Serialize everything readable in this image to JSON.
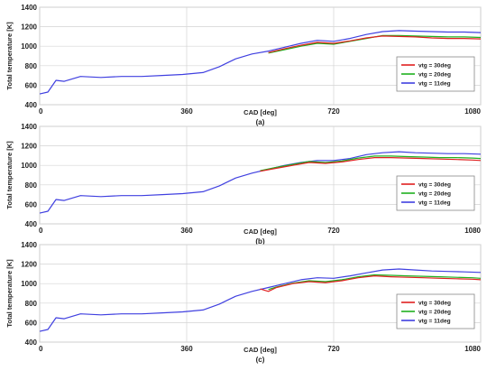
{
  "chart_data": [
    {
      "type": "line",
      "caption": "(a)",
      "xlabel": "CAD [deg]",
      "ylabel": "Total temperature [K]",
      "xlim": [
        0,
        1080
      ],
      "ylim": [
        400,
        1400
      ],
      "xticks": [
        0,
        360,
        720,
        1080
      ],
      "yticks": [
        400,
        600,
        800,
        1000,
        1200,
        1400
      ],
      "grid": true,
      "legend_position": "right-middle",
      "series": [
        {
          "name": "vtg = 30deg",
          "color": "#e02020",
          "x": [
            560,
            600,
            640,
            680,
            720,
            760,
            800,
            840,
            880,
            920,
            960,
            1000,
            1040,
            1080
          ],
          "y": [
            935,
            975,
            1010,
            1040,
            1030,
            1055,
            1085,
            1105,
            1100,
            1095,
            1085,
            1080,
            1080,
            1075
          ]
        },
        {
          "name": "vtg = 20deg",
          "color": "#20b020",
          "x": [
            560,
            600,
            640,
            680,
            720,
            760,
            800,
            840,
            880,
            920,
            960,
            1000,
            1040,
            1080
          ],
          "y": [
            930,
            965,
            1000,
            1030,
            1020,
            1050,
            1080,
            1110,
            1110,
            1105,
            1100,
            1095,
            1095,
            1090
          ]
        },
        {
          "name": "vtg = 11deg",
          "color": "#4040e0",
          "x": [
            0,
            20,
            40,
            60,
            100,
            150,
            200,
            250,
            300,
            350,
            400,
            440,
            480,
            520,
            560,
            600,
            640,
            680,
            720,
            760,
            800,
            840,
            880,
            920,
            960,
            1000,
            1040,
            1080
          ],
          "y": [
            510,
            530,
            650,
            640,
            690,
            680,
            690,
            690,
            700,
            710,
            730,
            790,
            870,
            920,
            950,
            990,
            1030,
            1060,
            1050,
            1080,
            1120,
            1150,
            1160,
            1155,
            1150,
            1145,
            1145,
            1140
          ]
        }
      ]
    },
    {
      "type": "line",
      "caption": "(b)",
      "xlabel": "CAD [deg]",
      "ylabel": "Total temperature [K]",
      "xlim": [
        0,
        1080
      ],
      "ylim": [
        400,
        1400
      ],
      "xticks": [
        0,
        360,
        720,
        1080
      ],
      "yticks": [
        400,
        600,
        800,
        1000,
        1200,
        1400
      ],
      "grid": true,
      "legend_position": "right-middle",
      "series": [
        {
          "name": "vtg = 30deg",
          "color": "#e02020",
          "x": [
            540,
            580,
            620,
            660,
            700,
            740,
            780,
            820,
            860,
            900,
            940,
            980,
            1020,
            1060,
            1080
          ],
          "y": [
            940,
            970,
            1000,
            1030,
            1020,
            1035,
            1060,
            1080,
            1080,
            1075,
            1070,
            1065,
            1060,
            1055,
            1050
          ]
        },
        {
          "name": "vtg = 20deg",
          "color": "#20b020",
          "x": [
            540,
            580,
            620,
            660,
            700,
            740,
            780,
            820,
            860,
            900,
            940,
            980,
            1020,
            1060,
            1080
          ],
          "y": [
            945,
            980,
            1010,
            1040,
            1030,
            1045,
            1075,
            1095,
            1095,
            1090,
            1085,
            1080,
            1080,
            1075,
            1070
          ]
        },
        {
          "name": "vtg = 11deg",
          "color": "#4040e0",
          "x": [
            0,
            20,
            40,
            60,
            100,
            150,
            200,
            250,
            300,
            350,
            400,
            440,
            480,
            520,
            560,
            600,
            640,
            680,
            720,
            760,
            800,
            840,
            880,
            920,
            960,
            1000,
            1040,
            1080
          ],
          "y": [
            510,
            530,
            650,
            640,
            690,
            680,
            690,
            690,
            700,
            710,
            730,
            790,
            870,
            920,
            960,
            1000,
            1030,
            1050,
            1050,
            1070,
            1110,
            1130,
            1140,
            1130,
            1125,
            1120,
            1120,
            1115
          ]
        }
      ]
    },
    {
      "type": "line",
      "caption": "(c)",
      "xlabel": "CAD [deg]",
      "ylabel": "Total temperature [K]",
      "xlim": [
        0,
        1080
      ],
      "ylim": [
        400,
        1400
      ],
      "xticks": [
        0,
        360,
        720,
        1080
      ],
      "yticks": [
        400,
        600,
        800,
        1000,
        1200,
        1400
      ],
      "grid": true,
      "legend_position": "right-middle",
      "series": [
        {
          "name": "vtg = 30deg",
          "color": "#e02020",
          "x": [
            540,
            560,
            580,
            620,
            660,
            700,
            740,
            780,
            820,
            860,
            900,
            940,
            980,
            1020,
            1060,
            1080
          ],
          "y": [
            945,
            920,
            960,
            1000,
            1020,
            1010,
            1030,
            1060,
            1080,
            1070,
            1065,
            1060,
            1055,
            1050,
            1045,
            1040
          ]
        },
        {
          "name": "vtg = 20deg",
          "color": "#20b020",
          "x": [
            560,
            580,
            620,
            660,
            700,
            740,
            780,
            820,
            860,
            900,
            940,
            980,
            1020,
            1060,
            1080
          ],
          "y": [
            940,
            965,
            1005,
            1030,
            1020,
            1040,
            1070,
            1090,
            1085,
            1080,
            1075,
            1070,
            1065,
            1060,
            1055
          ]
        },
        {
          "name": "vtg = 11deg",
          "color": "#4040e0",
          "x": [
            0,
            20,
            40,
            60,
            100,
            150,
            200,
            250,
            300,
            350,
            400,
            440,
            480,
            520,
            560,
            600,
            640,
            680,
            720,
            760,
            800,
            840,
            880,
            920,
            960,
            1000,
            1040,
            1080
          ],
          "y": [
            510,
            530,
            650,
            640,
            690,
            680,
            690,
            690,
            700,
            710,
            730,
            790,
            870,
            920,
            960,
            1000,
            1040,
            1060,
            1055,
            1080,
            1110,
            1140,
            1150,
            1140,
            1130,
            1125,
            1120,
            1115
          ]
        }
      ]
    }
  ]
}
